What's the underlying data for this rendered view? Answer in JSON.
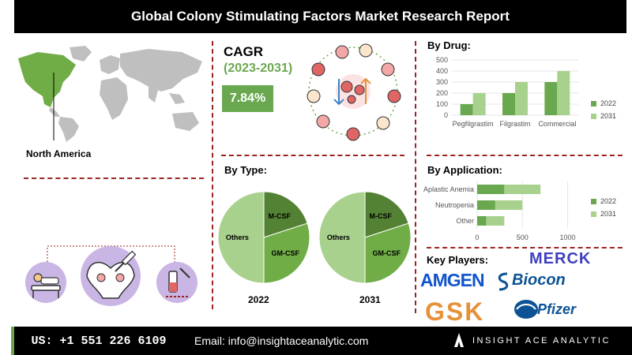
{
  "title": "Global Colony Stimulating Factors Market Research Report",
  "region": "North America",
  "cagr": {
    "heading": "CAGR",
    "period": "(2023-2031)",
    "value": "7.84%"
  },
  "sections": {
    "by_drug": "By Drug:",
    "by_type": "By Type:",
    "by_application": "By Application:",
    "key_players": "Key Players:"
  },
  "colors": {
    "green_dark": "#6aa84f",
    "green_light": "#a9d18e",
    "pie_dark": "#548235",
    "pie_mid": "#70ad47",
    "pie_light": "#a9d18e",
    "accent_red": "#9b2423",
    "black": "#000000"
  },
  "chart_data": [
    {
      "type": "bar",
      "name": "by_drug",
      "categories": [
        "Pegfilgrastim",
        "Filgrastim",
        "Commercial"
      ],
      "series": [
        {
          "name": "2022",
          "values": [
            100,
            200,
            300
          ]
        },
        {
          "name": "2031",
          "values": [
            200,
            300,
            400
          ]
        }
      ],
      "yticks": [
        "0",
        "100",
        "200",
        "300",
        "400",
        "500"
      ],
      "ylim": [
        0,
        500
      ],
      "legend": "right"
    },
    {
      "type": "pie",
      "name": "by_type_2022",
      "year": "2022",
      "slices": [
        {
          "label": "M-CSF",
          "value": 20
        },
        {
          "label": "GM-CSF",
          "value": 30
        },
        {
          "label": "Others",
          "value": 50
        }
      ]
    },
    {
      "type": "pie",
      "name": "by_type_2031",
      "year": "2031",
      "slices": [
        {
          "label": "M-CSF",
          "value": 20
        },
        {
          "label": "GM-CSF",
          "value": 30
        },
        {
          "label": "Others",
          "value": 50
        }
      ]
    },
    {
      "type": "bar",
      "orientation": "horizontal",
      "stacked": true,
      "name": "by_application",
      "categories": [
        "Aplastic Anemia",
        "Neutropenia",
        "Other"
      ],
      "series": [
        {
          "name": "2022",
          "values": [
            300,
            200,
            100
          ]
        },
        {
          "name": "2031",
          "values": [
            400,
            300,
            200
          ]
        }
      ],
      "xticks": [
        "0",
        "500",
        "1000"
      ],
      "xlim": [
        0,
        1100
      ],
      "legend": "right"
    }
  ],
  "players": [
    "MERCK",
    "AMGEN",
    "Biocon",
    "GSK",
    "Pfizer"
  ],
  "footer": {
    "phone": "US: +1 551 226 6109",
    "email": "Email: info@insightaceanalytic.com",
    "brand": "INSIGHT ACE ANALYTIC"
  },
  "icons": [
    "world-map-icon",
    "blood-cell-medical-icon",
    "patient-bed-icon",
    "pelvis-injection-icon",
    "vial-syringe-icon",
    "brand-a-icon"
  ]
}
